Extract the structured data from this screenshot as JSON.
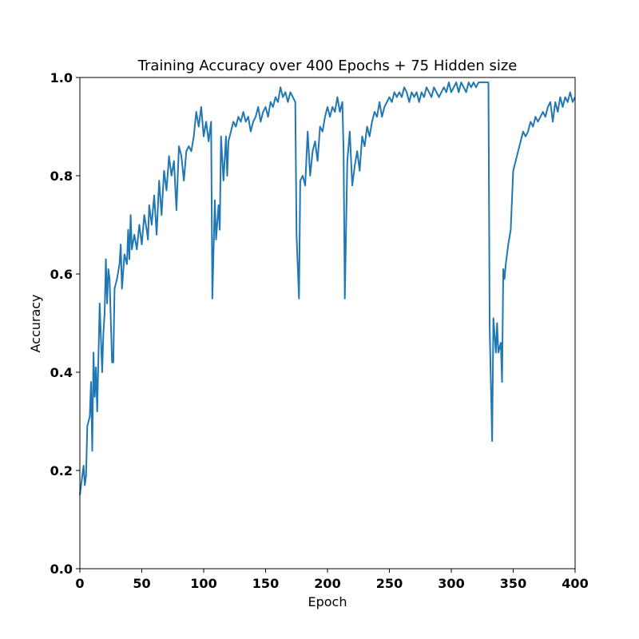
{
  "chart_data": {
    "type": "line",
    "title": "Training Accuracy over 400 Epochs + 75 Hidden size",
    "x_label": "Epoch",
    "y_label": "Accuracy",
    "xlim": [
      0,
      400
    ],
    "ylim": [
      0,
      1
    ],
    "xticks": [
      0,
      50,
      100,
      150,
      200,
      250,
      300,
      350,
      400
    ],
    "yticks": [
      {
        "value": 0,
        "label": "0.0"
      },
      {
        "value": 0.2,
        "label": "0.2"
      },
      {
        "value": 0.4,
        "label": "0.4"
      },
      {
        "value": 0.6,
        "label": "0.6"
      },
      {
        "value": 0.8,
        "label": "0.8"
      },
      {
        "value": 1,
        "label": "1.0"
      }
    ],
    "color": "#1f77b4",
    "x": [
      0,
      2,
      3,
      4,
      5,
      6,
      8,
      9,
      10,
      11,
      12,
      13,
      14,
      16,
      18,
      19,
      20,
      21,
      22,
      23,
      24,
      26,
      27,
      28,
      30,
      32,
      33,
      34,
      36,
      38,
      39,
      40,
      41,
      42,
      44,
      46,
      48,
      50,
      52,
      54,
      55,
      56,
      58,
      60,
      62,
      64,
      66,
      68,
      70,
      72,
      74,
      76,
      78,
      80,
      82,
      84,
      86,
      88,
      90,
      92,
      94,
      96,
      98,
      100,
      102,
      104,
      106,
      107,
      109,
      110,
      112,
      113,
      114,
      116,
      118,
      119,
      120,
      122,
      124,
      126,
      128,
      130,
      132,
      134,
      136,
      138,
      140,
      142,
      144,
      146,
      148,
      150,
      152,
      154,
      156,
      158,
      160,
      162,
      164,
      166,
      168,
      170,
      172,
      174,
      175,
      177,
      178,
      180,
      182,
      184,
      186,
      188,
      190,
      192,
      194,
      196,
      198,
      200,
      202,
      204,
      206,
      208,
      210,
      212,
      213,
      214,
      216,
      218,
      220,
      222,
      224,
      226,
      228,
      230,
      232,
      234,
      236,
      238,
      240,
      242,
      244,
      246,
      248,
      250,
      252,
      254,
      256,
      258,
      260,
      262,
      264,
      266,
      268,
      270,
      272,
      274,
      276,
      278,
      280,
      282,
      284,
      286,
      288,
      290,
      292,
      294,
      296,
      298,
      300,
      302,
      304,
      306,
      308,
      310,
      312,
      314,
      316,
      318,
      320,
      322,
      324,
      326,
      328,
      330,
      331,
      333,
      334,
      336,
      337,
      338,
      340,
      341,
      342,
      343,
      344,
      346,
      348,
      350,
      352,
      354,
      356,
      358,
      360,
      362,
      364,
      366,
      368,
      370,
      372,
      374,
      376,
      378,
      380,
      382,
      384,
      386,
      388,
      390,
      392,
      394,
      396,
      398,
      400
    ],
    "values": [
      0.15,
      0.19,
      0.21,
      0.17,
      0.19,
      0.29,
      0.31,
      0.38,
      0.24,
      0.44,
      0.35,
      0.41,
      0.32,
      0.54,
      0.4,
      0.48,
      0.52,
      0.63,
      0.54,
      0.61,
      0.59,
      0.42,
      0.42,
      0.57,
      0.59,
      0.62,
      0.66,
      0.57,
      0.64,
      0.62,
      0.69,
      0.63,
      0.72,
      0.65,
      0.68,
      0.65,
      0.7,
      0.66,
      0.72,
      0.69,
      0.67,
      0.74,
      0.7,
      0.76,
      0.68,
      0.79,
      0.72,
      0.81,
      0.77,
      0.84,
      0.8,
      0.83,
      0.73,
      0.86,
      0.84,
      0.79,
      0.85,
      0.86,
      0.85,
      0.88,
      0.93,
      0.9,
      0.94,
      0.88,
      0.91,
      0.87,
      0.91,
      0.55,
      0.75,
      0.67,
      0.74,
      0.69,
      0.88,
      0.79,
      0.88,
      0.8,
      0.87,
      0.89,
      0.91,
      0.9,
      0.92,
      0.91,
      0.93,
      0.91,
      0.92,
      0.89,
      0.91,
      0.92,
      0.94,
      0.91,
      0.93,
      0.94,
      0.92,
      0.95,
      0.94,
      0.96,
      0.95,
      0.98,
      0.96,
      0.97,
      0.95,
      0.97,
      0.96,
      0.95,
      0.68,
      0.55,
      0.79,
      0.8,
      0.78,
      0.89,
      0.8,
      0.85,
      0.87,
      0.83,
      0.9,
      0.89,
      0.92,
      0.94,
      0.92,
      0.94,
      0.93,
      0.96,
      0.93,
      0.95,
      0.85,
      0.55,
      0.83,
      0.89,
      0.78,
      0.82,
      0.85,
      0.81,
      0.88,
      0.86,
      0.9,
      0.88,
      0.91,
      0.93,
      0.92,
      0.95,
      0.92,
      0.94,
      0.95,
      0.96,
      0.95,
      0.97,
      0.96,
      0.97,
      0.96,
      0.98,
      0.97,
      0.95,
      0.97,
      0.96,
      0.97,
      0.95,
      0.97,
      0.96,
      0.98,
      0.97,
      0.96,
      0.98,
      0.97,
      0.96,
      0.97,
      0.98,
      0.97,
      0.99,
      0.97,
      0.98,
      0.99,
      0.97,
      0.99,
      0.98,
      0.97,
      0.99,
      0.98,
      0.99,
      0.98,
      0.99,
      0.99,
      0.99,
      0.99,
      0.99,
      0.49,
      0.26,
      0.51,
      0.44,
      0.5,
      0.44,
      0.46,
      0.38,
      0.61,
      0.59,
      0.62,
      0.66,
      0.69,
      0.81,
      0.83,
      0.85,
      0.87,
      0.89,
      0.88,
      0.89,
      0.91,
      0.9,
      0.92,
      0.91,
      0.92,
      0.93,
      0.92,
      0.94,
      0.95,
      0.91,
      0.95,
      0.93,
      0.96,
      0.94,
      0.96,
      0.95,
      0.97,
      0.95,
      0.96
    ]
  }
}
